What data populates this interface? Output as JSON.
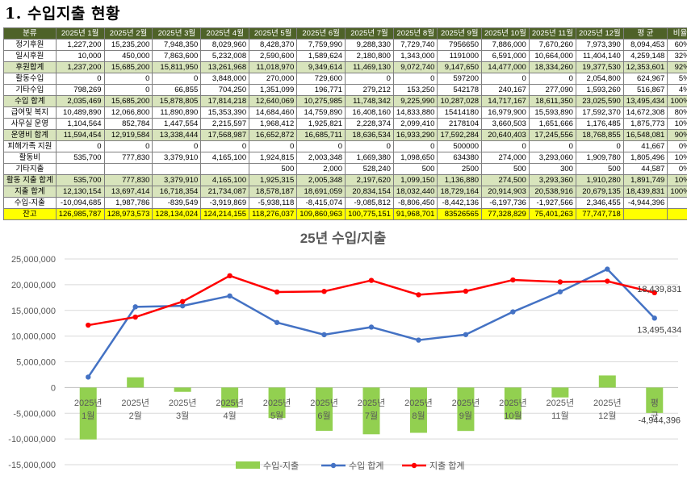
{
  "page_title": "1. 수입지출 현황",
  "table": {
    "headers": [
      "분류",
      "2025년 1월",
      "2025년 2월",
      "2025년 3월",
      "2025년 4월",
      "2025년 5월",
      "2025년 6월",
      "2025년 7월",
      "2025년 8월",
      "2025년 9월",
      "2025년 10월",
      "2025년 11월",
      "2025년 12월",
      "평  균",
      "비율"
    ],
    "rows": [
      {
        "style": "",
        "cells": [
          "정기후원",
          "1,227,200",
          "15,235,200",
          "7,948,350",
          "8,029,960",
          "8,428,370",
          "7,759,990",
          "9,288,330",
          "7,729,740",
          "7956650",
          "7,886,000",
          "7,670,260",
          "7,973,390",
          "8,094,453",
          "60%"
        ]
      },
      {
        "style": "",
        "cells": [
          "일시후원",
          "10,000",
          "450,000",
          "7,863,600",
          "5,232,008",
          "2,590,600",
          "1,589,624",
          "2,180,800",
          "1,343,000",
          "1191000",
          "6,591,000",
          "10,664,000",
          "11,404,140",
          "4,259,148",
          "32%"
        ]
      },
      {
        "style": "g",
        "cells": [
          "후원합계",
          "1,237,200",
          "15,685,200",
          "15,811,950",
          "13,261,968",
          "11,018,970",
          "9,349,614",
          "11,469,130",
          "9,072,740",
          "9,147,650",
          "14,477,000",
          "18,334,260",
          "19,377,530",
          "12,353,601",
          "92%"
        ]
      },
      {
        "style": "",
        "cells": [
          "활동수입",
          "0",
          "0",
          "0",
          "3,848,000",
          "270,000",
          "729,600",
          "0",
          "0",
          "597200",
          "0",
          "0",
          "2,054,800",
          "624,967",
          "5%"
        ]
      },
      {
        "style": "",
        "cells": [
          "기타수입",
          "798,269",
          "0",
          "66,855",
          "704,250",
          "1,351,099",
          "196,771",
          "279,212",
          "153,250",
          "542178",
          "240,167",
          "277,090",
          "1,593,260",
          "516,867",
          "4%"
        ]
      },
      {
        "style": "g",
        "cells": [
          "수입 합계",
          "2,035,469",
          "15,685,200",
          "15,878,805",
          "17,814,218",
          "12,640,069",
          "10,275,985",
          "11,748,342",
          "9,225,990",
          "10,287,028",
          "14,717,167",
          "18,611,350",
          "23,025,590",
          "13,495,434",
          "100%"
        ]
      },
      {
        "style": "",
        "cells": [
          "급여및 복지",
          "10,489,890",
          "12,066,800",
          "11,890,890",
          "15,353,390",
          "14,684,460",
          "14,759,890",
          "16,408,160",
          "14,833,880",
          "15414180",
          "16,979,900",
          "15,593,890",
          "17,592,370",
          "14,672,308",
          "80%"
        ]
      },
      {
        "style": "",
        "cells": [
          "사무실 운영",
          "1,104,564",
          "852,784",
          "1,447,554",
          "2,215,597",
          "1,968,412",
          "1,925,821",
          "2,228,374",
          "2,099,410",
          "2178104",
          "3,660,503",
          "1,651,666",
          "1,176,485",
          "1,875,773",
          "10%"
        ]
      },
      {
        "style": "g",
        "cells": [
          "운영비 합계",
          "11,594,454",
          "12,919,584",
          "13,338,444",
          "17,568,987",
          "16,652,872",
          "16,685,711",
          "18,636,534",
          "16,933,290",
          "17,592,284",
          "20,640,403",
          "17,245,556",
          "18,768,855",
          "16,548,081",
          "90%"
        ]
      },
      {
        "style": "",
        "cells": [
          "피해가족 지원",
          "0",
          "0",
          "0",
          "0",
          "0",
          "0",
          "0",
          "0",
          "500000",
          "0",
          "0",
          "0",
          "41,667",
          "0%"
        ]
      },
      {
        "style": "",
        "cells": [
          "활동비",
          "535,700",
          "777,830",
          "3,379,910",
          "4,165,100",
          "1,924,815",
          "2,003,348",
          "1,669,380",
          "1,098,650",
          "634380",
          "274,000",
          "3,293,060",
          "1,909,780",
          "1,805,496",
          "10%"
        ]
      },
      {
        "style": "",
        "cells": [
          "기타지출",
          "",
          "",
          "",
          "",
          "500",
          "2,000",
          "528,240",
          "500",
          "2500",
          "500",
          "300",
          "500",
          "44,587",
          "0%"
        ]
      },
      {
        "style": "g",
        "cells": [
          "활동 지출 합계",
          "535,700",
          "777,830",
          "3,379,910",
          "4,165,100",
          "1,925,315",
          "2,005,348",
          "2,197,620",
          "1,099,150",
          "1,136,880",
          "274,500",
          "3,293,360",
          "1,910,280",
          "1,891,749",
          "10%"
        ]
      },
      {
        "style": "g",
        "cells": [
          "지출 합계",
          "12,130,154",
          "13,697,414",
          "16,718,354",
          "21,734,087",
          "18,578,187",
          "18,691,059",
          "20,834,154",
          "18,032,440",
          "18,729,164",
          "20,914,903",
          "20,538,916",
          "20,679,135",
          "18,439,831",
          "100%"
        ]
      },
      {
        "style": "",
        "cells": [
          "수입-지출",
          "-10,094,685",
          "1,987,786",
          "-839,549",
          "-3,919,869",
          "-5,938,118",
          "-8,415,074",
          "-9,085,812",
          "-8,806,450",
          "-8,442,136",
          "-6,197,736",
          "-1,927,566",
          "2,346,455",
          "-4,944,396",
          ""
        ]
      },
      {
        "style": "bal",
        "cells": [
          "잔고",
          "126,985,787",
          "128,973,573",
          "128,134,024",
          "124,214,155",
          "118,276,037",
          "109,860,963",
          "100,775,151",
          "91,968,701",
          "83526565",
          "77,328,829",
          "75,401,263",
          "77,747,718",
          "",
          ""
        ]
      }
    ]
  },
  "chart_data": {
    "type": "bar",
    "title": "25년 수입/지출",
    "categories": [
      "2025년 1월",
      "2025년 2월",
      "2025년 3월",
      "2025년 4월",
      "2025년 5월",
      "2025년 6월",
      "2025년 7월",
      "2025년 8월",
      "2025년 9월",
      "2025년 10월",
      "2025년 11월",
      "2025년 12월",
      "평  균"
    ],
    "ylim": [
      -15000000,
      25000000
    ],
    "yticks": [
      25000000,
      20000000,
      15000000,
      10000000,
      5000000,
      0,
      -5000000,
      -10000000,
      -15000000
    ],
    "ytick_labels": [
      "25,000,000",
      "20,000,000",
      "15,000,000",
      "10,000,000",
      "5,000,000",
      "0",
      "-5,000,000",
      "-10,000,000",
      "-15,000,000"
    ],
    "grid": true,
    "legend_position": "bottom",
    "series": [
      {
        "name": "수입-지출",
        "type": "bar",
        "color": "#92d050",
        "values": [
          -10094685,
          1987786,
          -839549,
          -3919869,
          -5938118,
          -8415074,
          -9085812,
          -8806450,
          -8442136,
          -6197736,
          -1927566,
          2346455,
          -4944396
        ]
      },
      {
        "name": "수입 합계",
        "type": "line",
        "color": "#4472c4",
        "values": [
          2035469,
          15685200,
          15878805,
          17814218,
          12640069,
          10275985,
          11748342,
          9225990,
          10287028,
          14717167,
          18611350,
          23025590,
          13495434
        ]
      },
      {
        "name": "지출 합계",
        "type": "line",
        "color": "#ff0000",
        "values": [
          12130154,
          13697414,
          16718354,
          21734087,
          18578187,
          18691059,
          20834154,
          18032440,
          18729164,
          20914903,
          20538916,
          20679135,
          18439831
        ]
      }
    ],
    "data_labels": [
      {
        "series": "지출 합계",
        "index": 12,
        "text": "18,439,831"
      },
      {
        "series": "수입 합계",
        "index": 12,
        "text": "13,495,434"
      },
      {
        "series": "수입-지출",
        "index": 12,
        "text": "-4,944,396"
      }
    ]
  }
}
